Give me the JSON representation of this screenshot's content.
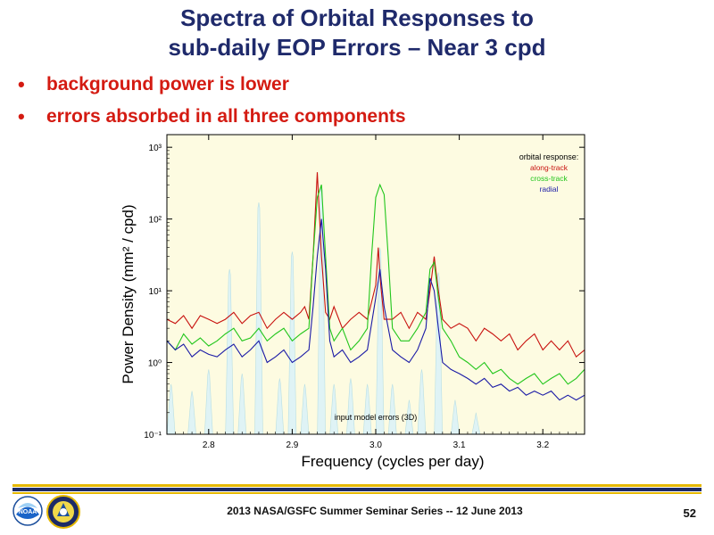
{
  "slide": {
    "title_line1": "Spectra of Orbital Responses to",
    "title_line2": "sub-daily EOP Errors – Near 3 cpd",
    "bullets": [
      "background power is lower",
      "errors absorbed in all three components"
    ],
    "footer": "2013 NASA/GSFC Summer Seminar Series -- 12 June 2013",
    "page_number": "52",
    "noaa_logo_text": "NOAA"
  },
  "chart_data": {
    "type": "line",
    "xlabel": "Frequency (cycles per day)",
    "ylabel": "Power Density  (mm² / cpd)",
    "xlim": [
      2.75,
      3.25
    ],
    "ylim": [
      0.1,
      1500
    ],
    "yscale": "log",
    "x_ticks": [
      "2.8",
      "2.9",
      "3.0",
      "3.1",
      "3.2"
    ],
    "y_ticks": [
      "10⁻¹",
      "10⁰",
      "10¹",
      "10²",
      "10³"
    ],
    "legend_title": "orbital response:",
    "legend_position": "top-right",
    "annotation": "input model errors (3D)",
    "colors": {
      "plot_bg": "#fdfbe1",
      "along": "#c8120f",
      "cross": "#22c61c",
      "radial": "#1a1aa6",
      "input": "#dff3f5"
    },
    "input_peaks": [
      {
        "x": 2.755,
        "y": 0.5
      },
      {
        "x": 2.78,
        "y": 0.4
      },
      {
        "x": 2.8,
        "y": 0.8
      },
      {
        "x": 2.825,
        "y": 20
      },
      {
        "x": 2.84,
        "y": 0.7
      },
      {
        "x": 2.86,
        "y": 170
      },
      {
        "x": 2.885,
        "y": 0.6
      },
      {
        "x": 2.9,
        "y": 35
      },
      {
        "x": 2.915,
        "y": 0.5
      },
      {
        "x": 2.935,
        "y": 300
      },
      {
        "x": 2.95,
        "y": 0.5
      },
      {
        "x": 2.97,
        "y": 0.6
      },
      {
        "x": 2.99,
        "y": 0.5
      },
      {
        "x": 3.005,
        "y": 40
      },
      {
        "x": 3.02,
        "y": 0.5
      },
      {
        "x": 3.04,
        "y": 0.3
      },
      {
        "x": 3.055,
        "y": 0.8
      },
      {
        "x": 3.075,
        "y": 18
      },
      {
        "x": 3.095,
        "y": 0.3
      },
      {
        "x": 3.12,
        "y": 0.2
      }
    ],
    "series": [
      {
        "name": "along-track",
        "x": [
          2.75,
          2.76,
          2.77,
          2.78,
          2.79,
          2.8,
          2.81,
          2.82,
          2.83,
          2.84,
          2.85,
          2.86,
          2.87,
          2.88,
          2.89,
          2.9,
          2.91,
          2.915,
          2.92,
          2.925,
          2.93,
          2.935,
          2.94,
          2.945,
          2.95,
          2.96,
          2.97,
          2.98,
          2.99,
          3.0,
          3.003,
          3.006,
          3.01,
          3.02,
          3.03,
          3.04,
          3.05,
          3.06,
          3.065,
          3.07,
          3.075,
          3.08,
          3.09,
          3.1,
          3.11,
          3.12,
          3.13,
          3.14,
          3.15,
          3.16,
          3.17,
          3.18,
          3.19,
          3.2,
          3.21,
          3.22,
          3.23,
          3.24,
          3.25
        ],
        "y": [
          4,
          3.5,
          4.5,
          3,
          4.5,
          4,
          3.5,
          4,
          5,
          3.5,
          4.5,
          5,
          3,
          4,
          5,
          4,
          5,
          6,
          4,
          30,
          450,
          30,
          5,
          4,
          6,
          3,
          4,
          5,
          4,
          12,
          40,
          12,
          4,
          4,
          5,
          3,
          5,
          4,
          10,
          30,
          10,
          4,
          3,
          3.5,
          3,
          2,
          3,
          2.5,
          2,
          2.5,
          1.5,
          2,
          2.5,
          1.5,
          2,
          1.5,
          2,
          1.2,
          1.5
        ]
      },
      {
        "name": "cross-track",
        "x": [
          2.75,
          2.76,
          2.77,
          2.78,
          2.79,
          2.8,
          2.81,
          2.82,
          2.83,
          2.84,
          2.85,
          2.86,
          2.87,
          2.88,
          2.89,
          2.9,
          2.91,
          2.92,
          2.925,
          2.93,
          2.935,
          2.94,
          2.945,
          2.95,
          2.96,
          2.97,
          2.98,
          2.99,
          2.995,
          3.0,
          3.005,
          3.01,
          3.015,
          3.02,
          3.03,
          3.04,
          3.05,
          3.06,
          3.065,
          3.07,
          3.075,
          3.08,
          3.09,
          3.1,
          3.11,
          3.12,
          3.13,
          3.14,
          3.15,
          3.16,
          3.17,
          3.18,
          3.19,
          3.2,
          3.21,
          3.22,
          3.23,
          3.24,
          3.25
        ],
        "y": [
          2,
          1.5,
          2.5,
          1.8,
          2.2,
          1.7,
          2,
          2.5,
          3,
          2,
          2.2,
          3,
          2,
          2.5,
          3,
          2,
          2.5,
          3,
          30,
          200,
          300,
          30,
          3,
          2,
          3,
          1.5,
          2,
          3,
          30,
          200,
          300,
          220,
          30,
          3,
          2,
          2,
          3,
          5,
          20,
          25,
          8,
          3,
          2,
          1.2,
          1,
          0.8,
          1,
          0.7,
          0.8,
          0.6,
          0.5,
          0.6,
          0.7,
          0.5,
          0.6,
          0.7,
          0.5,
          0.6,
          0.8
        ]
      },
      {
        "name": "radial",
        "x": [
          2.75,
          2.76,
          2.77,
          2.78,
          2.79,
          2.8,
          2.81,
          2.82,
          2.83,
          2.84,
          2.85,
          2.86,
          2.87,
          2.88,
          2.89,
          2.9,
          2.91,
          2.92,
          2.925,
          2.93,
          2.935,
          2.94,
          2.945,
          2.95,
          2.96,
          2.97,
          2.98,
          2.99,
          3.0,
          3.005,
          3.01,
          3.02,
          3.03,
          3.04,
          3.05,
          3.06,
          3.065,
          3.07,
          3.075,
          3.08,
          3.09,
          3.1,
          3.11,
          3.12,
          3.13,
          3.14,
          3.15,
          3.16,
          3.17,
          3.18,
          3.19,
          3.2,
          3.21,
          3.22,
          3.23,
          3.24,
          3.25
        ],
        "y": [
          2,
          1.5,
          1.8,
          1.2,
          1.5,
          1.3,
          1.2,
          1.5,
          1.8,
          1.2,
          1.5,
          2,
          1,
          1.2,
          1.5,
          1,
          1.2,
          1.5,
          6,
          30,
          100,
          20,
          2,
          1.2,
          1.5,
          1,
          1.2,
          1.5,
          8,
          20,
          6,
          1.5,
          1.2,
          1,
          1.5,
          3,
          15,
          10,
          3,
          1,
          0.8,
          0.7,
          0.6,
          0.5,
          0.6,
          0.45,
          0.5,
          0.4,
          0.45,
          0.35,
          0.4,
          0.35,
          0.4,
          0.3,
          0.35,
          0.3,
          0.35
        ]
      }
    ]
  }
}
